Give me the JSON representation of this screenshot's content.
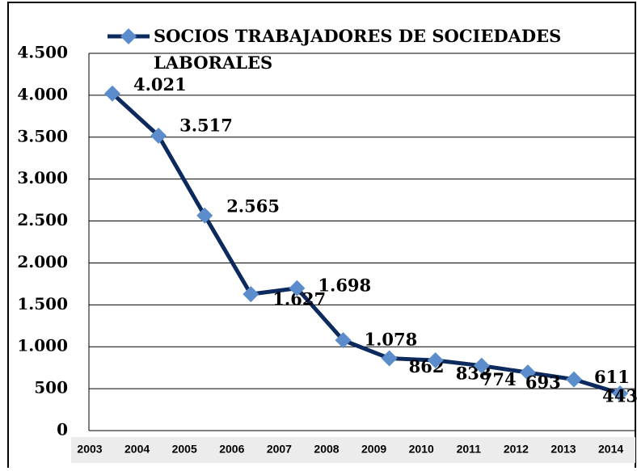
{
  "chart_data": {
    "type": "line",
    "categories": [
      "2003",
      "2004",
      "2005",
      "2006",
      "2007",
      "2008",
      "2009",
      "2010",
      "2011",
      "2012",
      "2013",
      "2014"
    ],
    "series": [
      {
        "name": "SOCIOS TRABAJADORES DE SOCIEDADES LABORALES",
        "color": "#0d2a5e",
        "marker_color": "#5b8ccc",
        "values": [
          4021,
          3517,
          2565,
          1627,
          1698,
          1078,
          862,
          838,
          774,
          693,
          611,
          443
        ],
        "value_labels": [
          "4.021",
          "3.517",
          "2.565",
          "1.627",
          "1.698",
          "1.078",
          "862",
          "838",
          "774",
          "693",
          "611",
          "443"
        ]
      }
    ],
    "ylim": [
      0,
      4500
    ],
    "yticks": [
      0,
      500,
      {
        "value": 1000,
        "label": "1.000"
      },
      {
        "value": 1500,
        "label": "1.500"
      },
      {
        "value": 2000,
        "label": "2.000"
      },
      {
        "value": 2500,
        "label": "2.500"
      },
      {
        "value": 3000,
        "label": "3.000"
      },
      {
        "value": 3500,
        "label": "3.500"
      },
      {
        "value": 4000,
        "label": "4.000"
      },
      {
        "value": 4500,
        "label": "4.500"
      }
    ],
    "grid": true
  }
}
